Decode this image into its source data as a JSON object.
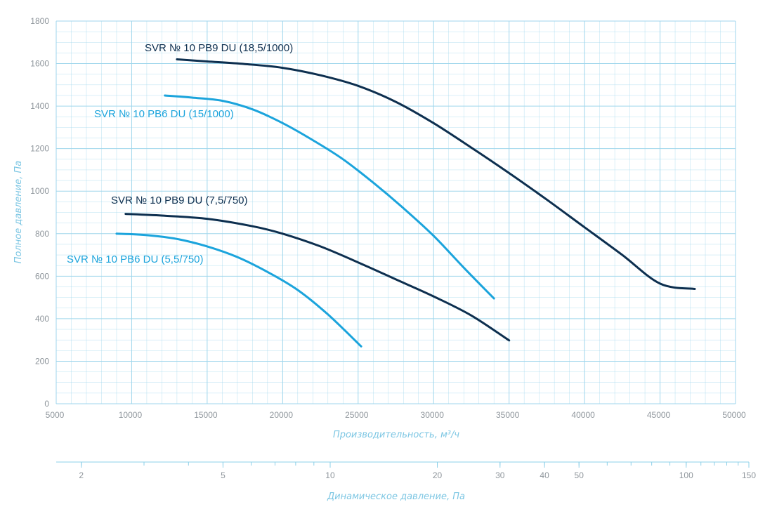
{
  "chart_data": {
    "type": "line",
    "xlabel": "Производительность, м³/ч",
    "ylabel": "Полное давление, Па",
    "xlim": [
      5000,
      50000
    ],
    "ylim": [
      0,
      1800
    ],
    "x_ticks": [
      "5000",
      "10000",
      "15000",
      "20000",
      "25000",
      "30000",
      "35000",
      "40000",
      "45000",
      "50000"
    ],
    "y_ticks": [
      "0",
      "200",
      "400",
      "600",
      "800",
      "1000",
      "1200",
      "1400",
      "1600",
      "1800"
    ],
    "grid": true,
    "secondary_axis": {
      "label": "Динамическое давление, Па",
      "scale": "log",
      "range": [
        1.7,
        150
      ],
      "ticks": [
        "2",
        "5",
        "10",
        "20",
        "30",
        "40",
        "50",
        "100",
        "150"
      ]
    },
    "series": [
      {
        "name": "SVR № 10 PB9 DU (18,5/1000)",
        "color": "#0d2f4f",
        "x": [
          13000,
          15000,
          17500,
          20000,
          22500,
          25000,
          27500,
          30000,
          32500,
          35000,
          37500,
          40000,
          42500,
          45000,
          47300
        ],
        "y": [
          1620,
          1610,
          1598,
          1580,
          1545,
          1495,
          1420,
          1320,
          1205,
          1085,
          960,
          830,
          700,
          565,
          540
        ]
      },
      {
        "name": "SVR № 10 PB6 DU (15/1000)",
        "color": "#1ba4dc",
        "x": [
          12200,
          14000,
          16000,
          18000,
          20000,
          22000,
          24000,
          26000,
          28000,
          30000,
          32000,
          34000
        ],
        "y": [
          1450,
          1440,
          1425,
          1385,
          1320,
          1240,
          1150,
          1040,
          920,
          790,
          640,
          495
        ]
      },
      {
        "name": "SVR № 10 PB9 DU (7,5/750)",
        "color": "#0d2f4f",
        "x": [
          9600,
          12000,
          15000,
          18000,
          20000,
          22500,
          25000,
          27500,
          30000,
          32500,
          35000
        ],
        "y": [
          893,
          885,
          870,
          835,
          800,
          740,
          665,
          585,
          505,
          415,
          298
        ]
      },
      {
        "name": "SVR № 10 PB6 DU (5,5/750)",
        "color": "#1ba4dc",
        "x": [
          9000,
          11000,
          13000,
          15000,
          17000,
          19000,
          21000,
          23000,
          25200
        ],
        "y": [
          800,
          793,
          775,
          740,
          690,
          620,
          535,
          420,
          270
        ]
      }
    ],
    "labels": {
      "pb9_18": "SVR № 10 PB9 DU (18,5/1000)",
      "pb6_15": "SVR № 10 PB6 DU (15/1000)",
      "pb9_7": "SVR № 10 PB9 DU (7,5/750)",
      "pb6_5": "SVR № 10 PB6 DU (5,5/750)"
    },
    "colors": {
      "grid": "#9fd6ec",
      "axis": "#8ed0e8",
      "tick_text": "#8f969c",
      "title_text": "#7cc6e3"
    }
  }
}
